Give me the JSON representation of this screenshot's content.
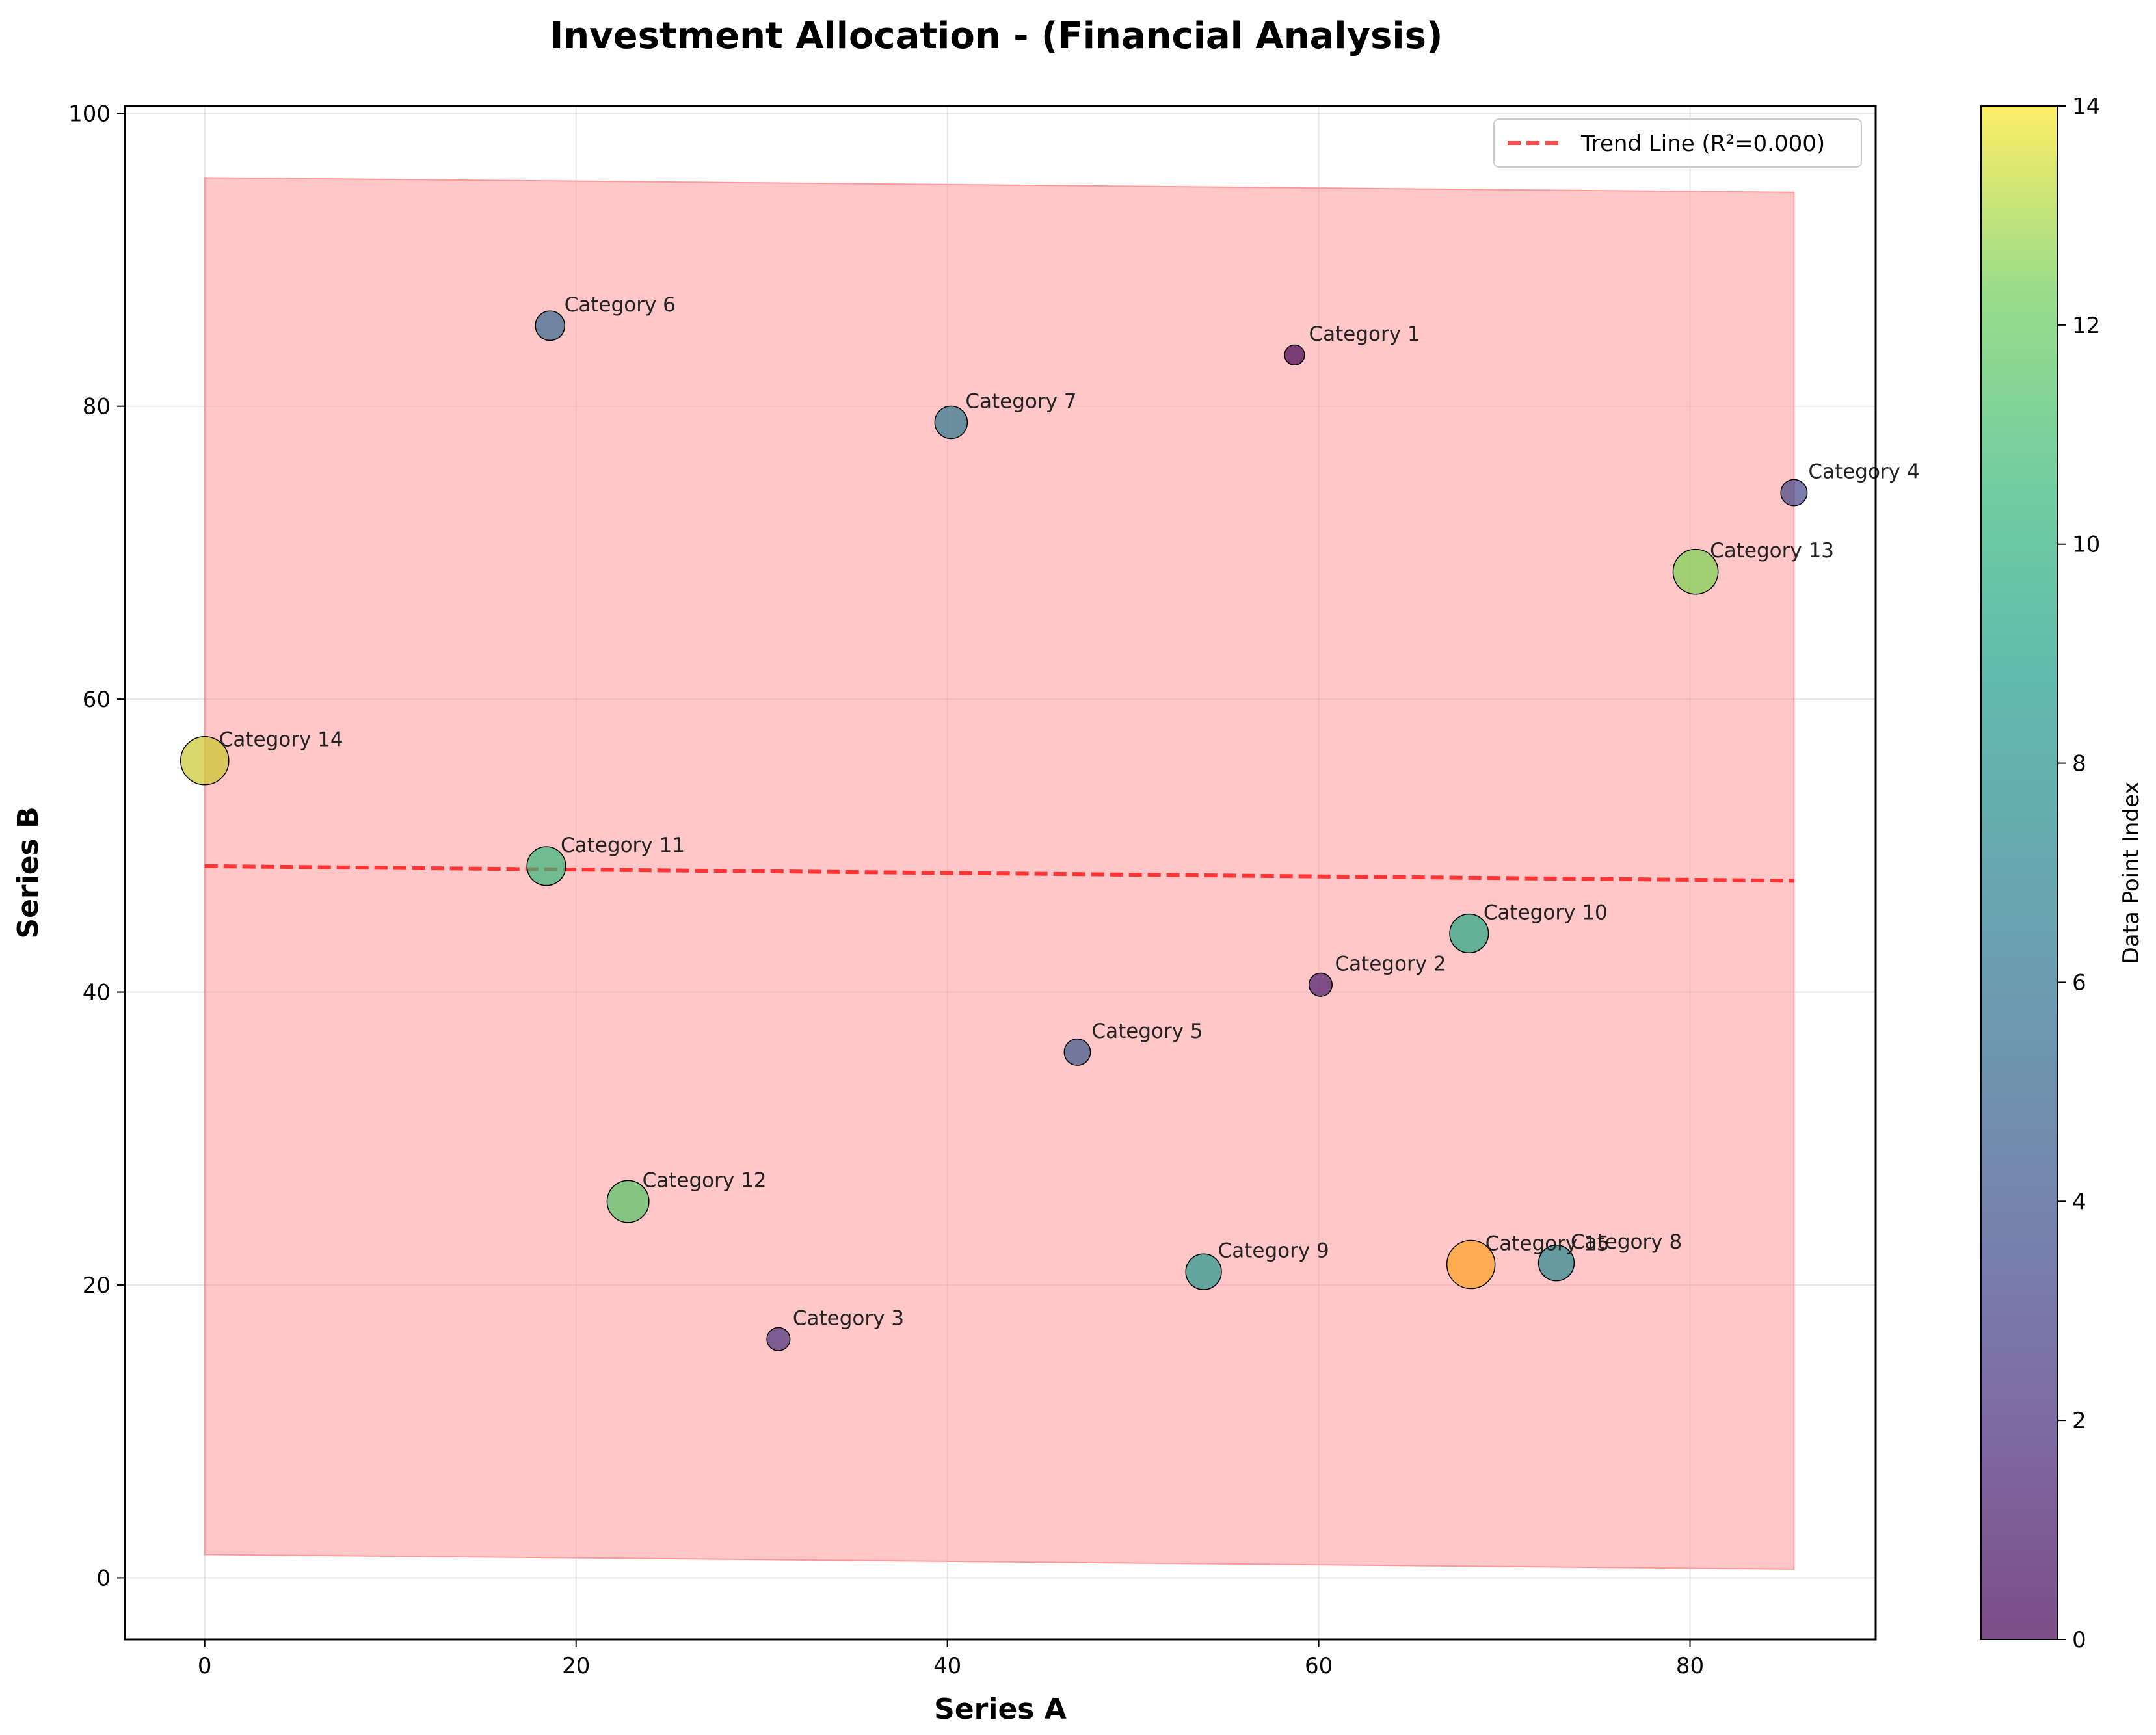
{
  "chart_data": {
    "type": "scatter",
    "title": "Investment Allocation - (Financial Analysis)",
    "xlabel": "Series A",
    "ylabel": "Series B",
    "xlim": [
      -4.3,
      90
    ],
    "ylim": [
      -4.2,
      100.5
    ],
    "xticks": [
      0,
      20,
      40,
      60,
      80
    ],
    "yticks": [
      0,
      20,
      40,
      60,
      80,
      100
    ],
    "grid": true,
    "legend": {
      "placement": "top-right",
      "entries": [
        "Trend Line (R²=0.000)"
      ]
    },
    "colorbar": {
      "label": "Data Point Index",
      "min": 0,
      "max": 14,
      "ticks": [
        0,
        2,
        4,
        6,
        8,
        10,
        12,
        14
      ],
      "colormap": "viridis"
    },
    "points": [
      {
        "label": "Category 1",
        "x": 58.7,
        "y": 83.5,
        "size": 1,
        "index": 0
      },
      {
        "label": "Category 2",
        "x": 60.1,
        "y": 40.5,
        "size": 2,
        "index": 1
      },
      {
        "label": "Category 3",
        "x": 30.9,
        "y": 16.3,
        "size": 2,
        "index": 2
      },
      {
        "label": "Category 4",
        "x": 85.6,
        "y": 74.1,
        "size": 3,
        "index": 3
      },
      {
        "label": "Category 5",
        "x": 47.0,
        "y": 35.9,
        "size": 3,
        "index": 4
      },
      {
        "label": "Category 6",
        "x": 18.6,
        "y": 85.5,
        "size": 4,
        "index": 5
      },
      {
        "label": "Category 7",
        "x": 40.2,
        "y": 78.9,
        "size": 5,
        "index": 6
      },
      {
        "label": "Category 8",
        "x": 72.8,
        "y": 21.5,
        "size": 6,
        "index": 7
      },
      {
        "label": "Category 9",
        "x": 53.8,
        "y": 20.9,
        "size": 6,
        "index": 8
      },
      {
        "label": "Category 10",
        "x": 68.1,
        "y": 44.0,
        "size": 7,
        "index": 9
      },
      {
        "label": "Category 11",
        "x": 18.4,
        "y": 48.6,
        "size": 7,
        "index": 10
      },
      {
        "label": "Category 12",
        "x": 22.8,
        "y": 25.7,
        "size": 8,
        "index": 11
      },
      {
        "label": "Category 13",
        "x": 80.3,
        "y": 68.7,
        "size": 9,
        "index": 12
      },
      {
        "label": "Category 14",
        "x": 0.0,
        "y": 55.8,
        "size": 10,
        "index": 13
      },
      {
        "label": "Category 15",
        "x": 68.2,
        "y": 21.4,
        "size": 10,
        "index": 14
      }
    ],
    "trend_line": {
      "x": [
        0.0,
        85.6
      ],
      "y": [
        48.6,
        47.6
      ],
      "style": "dashed",
      "color": "#ff1a1a"
    },
    "band": {
      "x": [
        0.0,
        85.6
      ],
      "upper": [
        95.6,
        94.6
      ],
      "lower": [
        1.6,
        0.6
      ],
      "color": "#ff9999"
    },
    "point_colors": [
      "#440154",
      "#481a6c",
      "#472f7d",
      "#414487",
      "#39568c",
      "#31688e",
      "#2a788e",
      "#23888e",
      "#1f988b",
      "#22a884",
      "#35b779",
      "#54c568",
      "#7ad151",
      "#a5db36",
      "#d2e21b"
    ],
    "point_overrides": {
      "13": "#c9c72e",
      "14": "#ffa022"
    }
  }
}
